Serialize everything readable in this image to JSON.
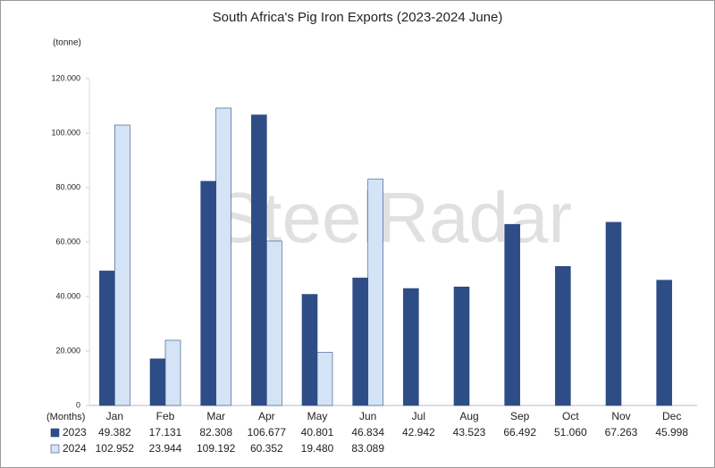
{
  "chart_data": {
    "type": "bar",
    "title": "South Africa's Pig Iron Exports (2023-2024 June)",
    "y_label": "(tonne)",
    "table_row_label": "(Months)",
    "watermark": "SteelRadar",
    "categories": [
      "Jan",
      "Feb",
      "Mar",
      "Apr",
      "May",
      "Jun",
      "Jul",
      "Aug",
      "Sep",
      "Oct",
      "Nov",
      "Dec"
    ],
    "series": [
      {
        "name": "2023",
        "color": "#2e4d87",
        "values": [
          49382,
          17131,
          82308,
          106677,
          40801,
          46834,
          42942,
          43523,
          66492,
          51060,
          67263,
          45998
        ],
        "value_labels": [
          "49.382",
          "17.131",
          "82.308",
          "106.677",
          "40.801",
          "46.834",
          "42.942",
          "43.523",
          "66.492",
          "51.060",
          "67.263",
          "45.998"
        ]
      },
      {
        "name": "2024",
        "color": "#d4e3f5",
        "values": [
          102952,
          23944,
          109192,
          60352,
          19480,
          83089,
          null,
          null,
          null,
          null,
          null,
          null
        ],
        "value_labels": [
          "102.952",
          "23.944",
          "109.192",
          "60.352",
          "19.480",
          "83.089",
          null,
          null,
          null,
          null,
          null,
          null
        ]
      }
    ],
    "ylim": [
      0,
      120000
    ],
    "yticks": [
      0,
      {
        "value": 20000,
        "label": "20.000"
      },
      {
        "value": 40000,
        "label": "40.000"
      },
      {
        "value": 60000,
        "label": "60.000"
      },
      {
        "value": 80000,
        "label": "80.000"
      },
      {
        "value": 100000,
        "label": "100.000"
      },
      {
        "value": 120000,
        "label": "120.000"
      }
    ],
    "grid": false
  }
}
